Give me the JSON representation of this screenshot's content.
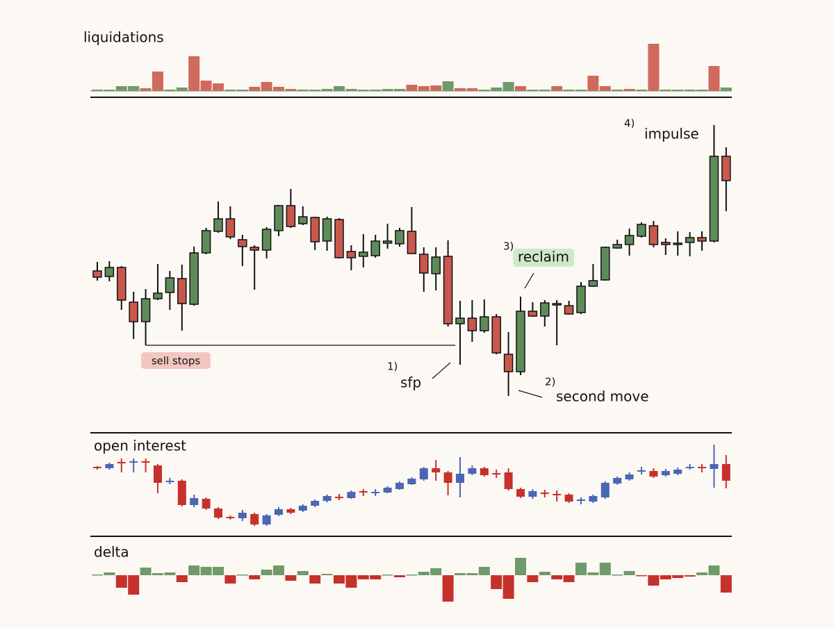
{
  "chart_data": [
    {
      "type": "bar",
      "title": "liquidations",
      "ylim": [
        0,
        70
      ],
      "values": [
        2,
        2,
        7,
        7,
        4,
        28,
        2,
        5,
        50,
        15,
        11,
        2,
        2,
        6,
        13,
        6,
        3,
        2,
        2,
        3,
        7,
        3,
        2,
        2,
        3,
        3,
        9,
        7,
        8,
        14,
        4,
        4,
        2,
        5,
        13,
        7,
        2,
        2,
        7,
        2,
        2,
        22,
        7,
        2,
        3,
        2,
        68,
        2,
        2,
        2,
        2,
        36,
        5
      ],
      "colors": [
        "#6f9a69",
        "#6f9a69",
        "#6f9a69",
        "#6f9a69",
        "#cf6a5c",
        "#cf6a5c",
        "#6f9a69",
        "#6f9a69",
        "#cf6a5c",
        "#cf6a5c",
        "#cf6a5c",
        "#6f9a69",
        "#6f9a69",
        "#cf6a5c",
        "#cf6a5c",
        "#cf6a5c",
        "#cf6a5c",
        "#6f9a69",
        "#6f9a69",
        "#6f9a69",
        "#6f9a69",
        "#6f9a69",
        "#6f9a69",
        "#6f9a69",
        "#6f9a69",
        "#6f9a69",
        "#cf6a5c",
        "#cf6a5c",
        "#cf6a5c",
        "#6f9a69",
        "#cf6a5c",
        "#cf6a5c",
        "#6f9a69",
        "#6f9a69",
        "#6f9a69",
        "#cf6a5c",
        "#6f9a69",
        "#6f9a69",
        "#cf6a5c",
        "#6f9a69",
        "#6f9a69",
        "#cf6a5c",
        "#cf6a5c",
        "#6f9a69",
        "#cf6a5c",
        "#6f9a69",
        "#cf6a5c",
        "#6f9a69",
        "#6f9a69",
        "#6f9a69",
        "#6f9a69",
        "#cf6a5c",
        "#6f9a69"
      ]
    },
    {
      "type": "candlestick",
      "ylim": [
        0,
        450
      ],
      "up_color": "#5e8b5a",
      "down_color": "#c9584c",
      "ohlc": [
        [
          210,
          223,
          196,
          201
        ],
        [
          202,
          224,
          195,
          215
        ],
        [
          215,
          217,
          154,
          168
        ],
        [
          165,
          180,
          112,
          137
        ],
        [
          137,
          184,
          103,
          170
        ],
        [
          170,
          220,
          168,
          178
        ],
        [
          179,
          210,
          154,
          200
        ],
        [
          199,
          219,
          124,
          163
        ],
        [
          162,
          245,
          160,
          236
        ],
        [
          236,
          272,
          234,
          268
        ],
        [
          267,
          310,
          265,
          285
        ],
        [
          285,
          303,
          256,
          259
        ],
        [
          255,
          262,
          217,
          245
        ],
        [
          244,
          247,
          183,
          240
        ],
        [
          240,
          273,
          228,
          270
        ],
        [
          268,
          305,
          260,
          304
        ],
        [
          304,
          328,
          272,
          274
        ],
        [
          278,
          303,
          276,
          288
        ],
        [
          287,
          288,
          240,
          252
        ],
        [
          253,
          288,
          239,
          285
        ],
        [
          284,
          286,
          228,
          229
        ],
        [
          238,
          247,
          211,
          229
        ],
        [
          231,
          263,
          215,
          237
        ],
        [
          232,
          262,
          229,
          253
        ],
        [
          250,
          278,
          242,
          253
        ],
        [
          249,
          272,
          245,
          268
        ],
        [
          267,
          302,
          234,
          235
        ],
        [
          234,
          244,
          180,
          207
        ],
        [
          206,
          244,
          182,
          230
        ],
        [
          231,
          254,
          130,
          134
        ],
        [
          134,
          167,
          75,
          142
        ],
        [
          142,
          168,
          108,
          124
        ],
        [
          124,
          169,
          121,
          144
        ],
        [
          144,
          148,
          90,
          92
        ],
        [
          90,
          122,
          30,
          65
        ],
        [
          65,
          173,
          60,
          152
        ],
        [
          152,
          165,
          144,
          145
        ],
        [
          145,
          168,
          130,
          164
        ],
        [
          163,
          168,
          103,
          161
        ],
        [
          160,
          167,
          147,
          148
        ],
        [
          150,
          194,
          148,
          188
        ],
        [
          188,
          220,
          187,
          196
        ],
        [
          197,
          245,
          196,
          244
        ],
        [
          243,
          255,
          242,
          248
        ],
        [
          248,
          271,
          232,
          261
        ],
        [
          260,
          280,
          258,
          277
        ],
        [
          275,
          282,
          244,
          248
        ],
        [
          251,
          257,
          233,
          248
        ],
        [
          249,
          267,
          232,
          250
        ],
        [
          251,
          266,
          231,
          258
        ],
        [
          258,
          267,
          239,
          253
        ],
        [
          253,
          420,
          251,
          375
        ],
        [
          375,
          388,
          296,
          340
        ]
      ],
      "annotations": [
        {
          "text": "sell stops"
        },
        {
          "number": "1)",
          "text": "sfp"
        },
        {
          "number": "2)",
          "text": "second move"
        },
        {
          "number": "3)",
          "text": "reclaim"
        },
        {
          "number": "4)",
          "text": "impulse"
        }
      ]
    },
    {
      "type": "candlestick",
      "title": "open interest",
      "ylim": [
        30,
        170
      ],
      "up_color": "#4a66b5",
      "down_color": "#c7312c",
      "ohlc": [
        [
          128,
          129,
          124,
          126
        ],
        [
          126,
          134,
          124,
          132
        ],
        [
          135,
          140,
          120,
          134
        ],
        [
          134,
          140,
          120,
          136
        ],
        [
          136,
          140,
          120,
          134
        ],
        [
          130,
          132,
          90,
          105
        ],
        [
          107,
          112,
          103,
          108
        ],
        [
          108,
          110,
          71,
          73
        ],
        [
          73,
          88,
          70,
          83
        ],
        [
          82,
          84,
          66,
          68
        ],
        [
          68,
          70,
          53,
          55
        ],
        [
          56,
          58,
          52,
          54
        ],
        [
          54,
          66,
          50,
          62
        ],
        [
          60,
          62,
          43,
          45
        ],
        [
          45,
          60,
          43,
          58
        ],
        [
          59,
          70,
          57,
          67
        ],
        [
          67,
          69,
          60,
          62
        ],
        [
          65,
          74,
          63,
          72
        ],
        [
          72,
          81,
          70,
          79
        ],
        [
          79,
          88,
          77,
          86
        ],
        [
          85,
          89,
          80,
          84
        ],
        [
          83,
          94,
          82,
          92
        ],
        [
          93,
          96,
          86,
          92
        ],
        [
          91,
          96,
          86,
          92
        ],
        [
          91,
          100,
          90,
          98
        ],
        [
          96,
          107,
          95,
          105
        ],
        [
          103,
          113,
          102,
          111
        ],
        [
          110,
          128,
          108,
          126
        ],
        [
          126,
          138,
          108,
          120
        ],
        [
          120,
          122,
          87,
          105
        ],
        [
          105,
          142,
          84,
          118
        ],
        [
          118,
          130,
          116,
          126
        ],
        [
          126,
          128,
          114,
          116
        ],
        [
          119,
          124,
          112,
          117
        ],
        [
          120,
          126,
          94,
          96
        ],
        [
          96,
          98,
          83,
          85
        ],
        [
          85,
          96,
          82,
          93
        ],
        [
          91,
          95,
          84,
          89
        ],
        [
          89,
          94,
          78,
          87
        ],
        [
          88,
          90,
          76,
          78
        ],
        [
          79,
          84,
          74,
          81
        ],
        [
          78,
          88,
          76,
          86
        ],
        [
          84,
          107,
          82,
          105
        ],
        [
          104,
          114,
          102,
          112
        ],
        [
          110,
          120,
          108,
          117
        ],
        [
          121,
          128,
          117,
          123
        ],
        [
          122,
          126,
          112,
          114
        ],
        [
          116,
          125,
          114,
          122
        ],
        [
          118,
          127,
          116,
          124
        ],
        [
          126,
          132,
          124,
          128
        ],
        [
          128,
          132,
          120,
          126
        ],
        [
          125,
          160,
          98,
          132
        ],
        [
          132,
          145,
          97,
          108
        ]
      ]
    },
    {
      "type": "bar",
      "title": "delta",
      "ylim": [
        -40,
        40
      ],
      "up_color": "#6f9a69",
      "down_color": "#c7312c",
      "values": [
        1,
        4,
        -18,
        -28,
        11,
        3,
        4,
        -10,
        14,
        12,
        12,
        -12,
        1,
        -6,
        8,
        14,
        -8,
        6,
        -12,
        2,
        -12,
        -18,
        -6,
        -6,
        1,
        -3,
        1,
        5,
        10,
        -38,
        3,
        3,
        12,
        -20,
        -34,
        25,
        -10,
        5,
        -6,
        -10,
        18,
        4,
        18,
        1,
        6,
        -1,
        -15,
        -6,
        -4,
        -2,
        4,
        14,
        -25
      ]
    }
  ]
}
